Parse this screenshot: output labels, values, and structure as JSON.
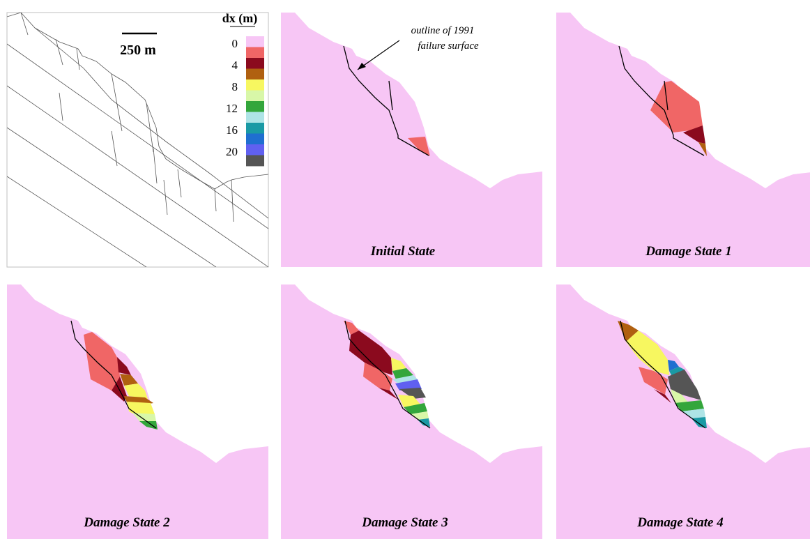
{
  "scale_bar": {
    "label": "250 m"
  },
  "legend": {
    "title": "dx (m)",
    "tick_labels": [
      "0",
      "4",
      "8",
      "12",
      "16",
      "20"
    ],
    "colors": [
      "#f7c6f5",
      "#f06666",
      "#8b0a1e",
      "#b06010",
      "#f7f760",
      "#d8f7a8",
      "#33a63b",
      "#aee4e6",
      "#1a9aa5",
      "#1f6fd0",
      "#6060f0",
      "#555555"
    ]
  },
  "annotation": {
    "line1": "outline of 1991",
    "line2": "failure surface"
  },
  "panels": [
    {
      "title": ""
    },
    {
      "title": "Initial State"
    },
    {
      "title": "Damage State 1"
    },
    {
      "title": "Damage State 2"
    },
    {
      "title": "Damage State 3"
    },
    {
      "title": "Damage State 4"
    }
  ],
  "colors": {
    "rock": "#f7c6f5",
    "outline": "#000000",
    "frame": "#bfbfbf"
  }
}
